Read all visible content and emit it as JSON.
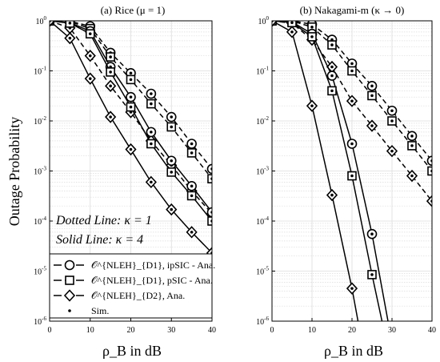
{
  "chart_data": [
    {
      "type": "line",
      "title": "(a) Rice (μ = 1)",
      "xlabel": "ρ_B in dB",
      "ylabel": "Outage Probability",
      "xlim": [
        0,
        40
      ],
      "ylim": [
        1e-06,
        1
      ],
      "yscale": "log",
      "grid": true,
      "xticks": [
        0,
        10,
        20,
        30,
        40
      ],
      "yticks": [
        1e-06,
        1e-05,
        0.0001,
        0.001,
        0.01,
        0.1,
        1
      ],
      "annotations": [
        "Dotted Line: κ = 1",
        "Solid Line: κ = 4"
      ],
      "legend": {
        "placement": "bottom-left",
        "entries": [
          {
            "marker": "circle",
            "label": "𝒪^{NLEH}_{D1}, ipSIC - Ana."
          },
          {
            "marker": "square",
            "label": "𝒪^{NLEH}_{D1}, pSIC - Ana."
          },
          {
            "marker": "diamond",
            "label": "𝒪^{NLEH}_{D2}, Ana."
          },
          {
            "marker": "dot",
            "label": "Sim."
          }
        ]
      },
      "series": [
        {
          "marker": "circle",
          "dash": "dashed",
          "x": [
            0,
            5,
            10,
            15,
            20,
            25,
            30,
            35,
            40
          ],
          "values": [
            1,
            0.98,
            0.78,
            0.23,
            0.09,
            0.035,
            0.012,
            0.0035,
            0.0011
          ]
        },
        {
          "marker": "square",
          "dash": "dashed",
          "x": [
            0,
            5,
            10,
            15,
            20,
            25,
            30,
            35,
            40
          ],
          "values": [
            1,
            0.97,
            0.7,
            0.19,
            0.067,
            0.022,
            0.0076,
            0.0023,
            0.0007
          ]
        },
        {
          "marker": "diamond",
          "dash": "dashed",
          "x": [
            0,
            5,
            10,
            15,
            20,
            25,
            30,
            35,
            40
          ],
          "values": [
            1,
            0.72,
            0.2,
            0.05,
            0.015,
            0.004,
            0.0013,
            0.0004,
            0.00014
          ]
        },
        {
          "marker": "circle",
          "dash": "solid",
          "x": [
            0,
            5,
            10,
            15,
            20,
            25,
            30,
            35,
            40
          ],
          "values": [
            1,
            0.92,
            0.62,
            0.12,
            0.03,
            0.006,
            0.0016,
            0.0005,
            0.00015
          ]
        },
        {
          "marker": "square",
          "dash": "solid",
          "x": [
            0,
            5,
            10,
            15,
            20,
            25,
            30,
            35,
            40
          ],
          "values": [
            1,
            0.9,
            0.55,
            0.095,
            0.019,
            0.0035,
            0.00095,
            0.00032,
            0.0001
          ]
        },
        {
          "marker": "diamond",
          "dash": "solid",
          "x": [
            0,
            5,
            10,
            15,
            20,
            25,
            30,
            35,
            40
          ],
          "values": [
            1,
            0.45,
            0.07,
            0.012,
            0.0027,
            0.0006,
            0.00017,
            6e-05,
            2.3e-05
          ]
        }
      ]
    },
    {
      "type": "line",
      "title": "(b) Nakagami-m (κ → 0)",
      "xlabel": "ρ_B in dB",
      "ylabel": "",
      "xlim": [
        0,
        40
      ],
      "ylim": [
        1e-06,
        1
      ],
      "yscale": "log",
      "grid": true,
      "xticks": [
        0,
        10,
        20,
        30,
        40
      ],
      "yticks": [
        1e-06,
        1e-05,
        0.0001,
        0.001,
        0.01,
        0.1,
        1
      ],
      "series": [
        {
          "marker": "circle",
          "dash": "dashed",
          "x": [
            0,
            5,
            10,
            15,
            20,
            25,
            30,
            35,
            40
          ],
          "values": [
            1,
            1,
            0.85,
            0.42,
            0.14,
            0.05,
            0.016,
            0.005,
            0.0016
          ]
        },
        {
          "marker": "square",
          "dash": "dashed",
          "x": [
            0,
            5,
            10,
            15,
            20,
            25,
            30,
            35,
            40
          ],
          "values": [
            1,
            0.99,
            0.75,
            0.33,
            0.1,
            0.032,
            0.01,
            0.0032,
            0.001
          ]
        },
        {
          "marker": "diamond",
          "dash": "dashed",
          "x": [
            0,
            5,
            10,
            15,
            20,
            25,
            30,
            35,
            40
          ],
          "values": [
            1,
            0.9,
            0.42,
            0.12,
            0.025,
            0.008,
            0.0025,
            0.0008,
            0.00025
          ]
        },
        {
          "marker": "circle",
          "dash": "solid",
          "x": [
            0,
            5,
            10,
            15,
            20,
            25,
            29
          ],
          "values": [
            1,
            0.95,
            0.55,
            0.08,
            0.0035,
            5.5e-05,
            1e-06
          ]
        },
        {
          "marker": "square",
          "dash": "solid",
          "x": [
            0,
            5,
            10,
            15,
            20,
            25,
            27.5
          ],
          "values": [
            1,
            0.92,
            0.48,
            0.04,
            0.0008,
            8.5e-06,
            1e-06
          ]
        },
        {
          "marker": "diamond",
          "dash": "solid",
          "x": [
            0,
            5,
            10,
            15,
            20,
            21.5
          ],
          "values": [
            1,
            0.6,
            0.02,
            0.00033,
            4.5e-06,
            1e-06
          ]
        }
      ]
    }
  ]
}
